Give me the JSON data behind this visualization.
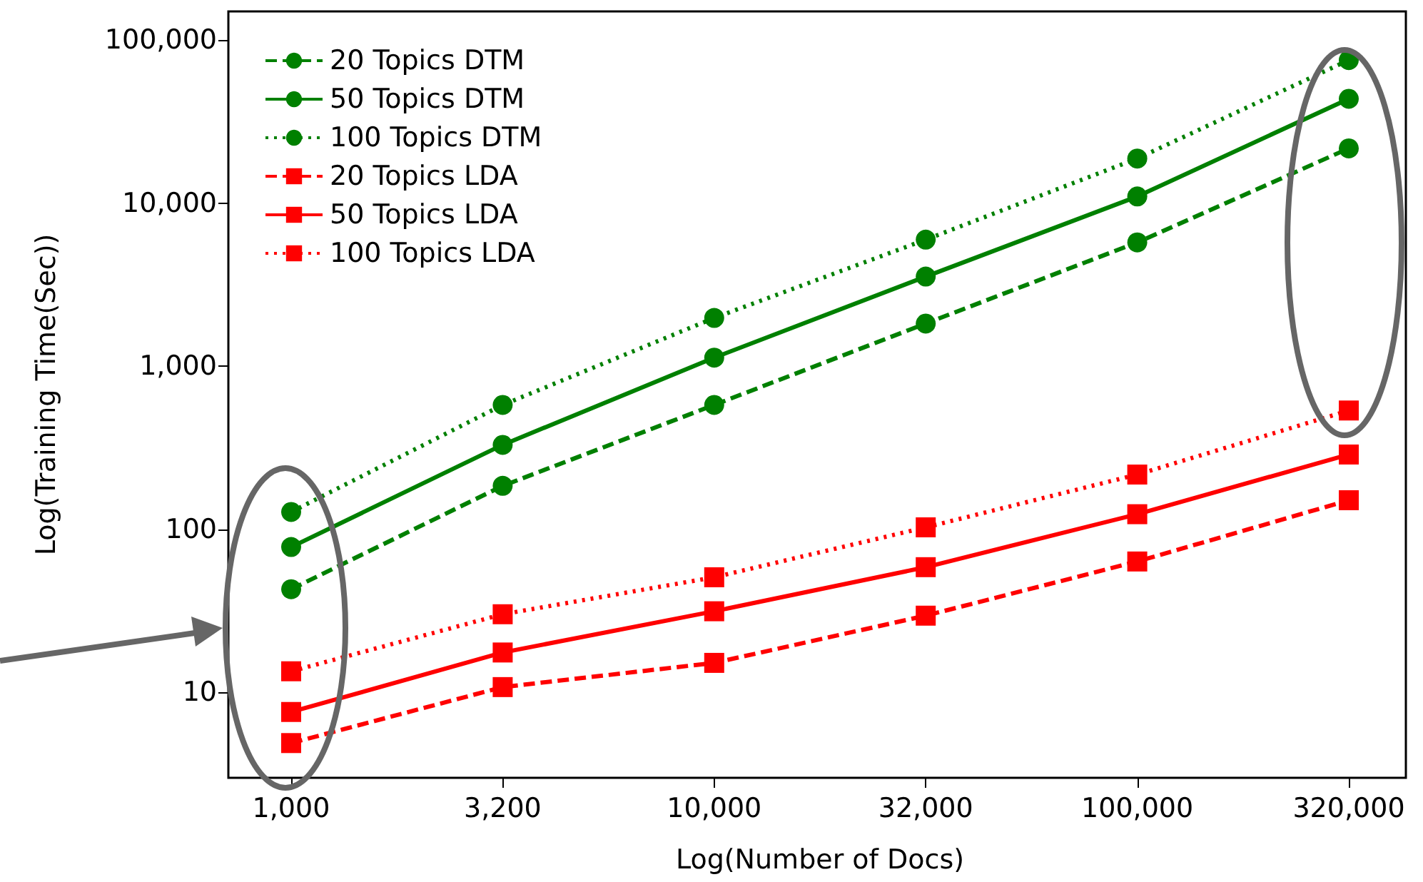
{
  "chart_data": {
    "type": "line",
    "xlabel": "Log(Number of Docs)",
    "ylabel": "Log(Training Time(Sec))",
    "categories": [
      "1,000",
      "3,200",
      "10,000",
      "32,000",
      "100,000",
      "320,000"
    ],
    "log": true,
    "ylim": [
      3,
      150000
    ],
    "yticks": [
      {
        "value": 10,
        "label": "10"
      },
      {
        "value": 100,
        "label": "100"
      },
      {
        "value": 1000,
        "label": "1,000"
      },
      {
        "value": 10000,
        "label": "10,000"
      },
      {
        "value": 100000,
        "label": "100,000"
      }
    ],
    "grid": false,
    "legend": "top left",
    "series": [
      {
        "name": "20 Topics DTM",
        "color": "#008000",
        "marker": "circle",
        "line_style": "dashed",
        "values": [
          43,
          185,
          580,
          1830,
          5750,
          21700
        ]
      },
      {
        "name": "50 Topics DTM",
        "color": "#008000",
        "marker": "circle",
        "line_style": "solid",
        "values": [
          78,
          330,
          1130,
          3550,
          11000,
          43700
        ]
      },
      {
        "name": "100 Topics DTM",
        "color": "#008000",
        "marker": "circle",
        "line_style": "dotted",
        "values": [
          128,
          580,
          1980,
          5980,
          18800,
          75500
        ]
      },
      {
        "name": "20 Topics LDA",
        "color": "#ff0000",
        "marker": "square",
        "line_style": "dashed",
        "values": [
          4.9,
          10.8,
          15.2,
          29.6,
          63.6,
          151
        ]
      },
      {
        "name": "50 Topics LDA",
        "color": "#ff0000",
        "marker": "square",
        "line_style": "solid",
        "values": [
          7.6,
          17.6,
          31.5,
          58.7,
          124,
          288
        ]
      },
      {
        "name": "100 Topics LDA",
        "color": "#ff0000",
        "marker": "square",
        "line_style": "dotted",
        "values": [
          13.5,
          30.2,
          50.9,
          103,
          217,
          536
        ]
      }
    ]
  }
}
